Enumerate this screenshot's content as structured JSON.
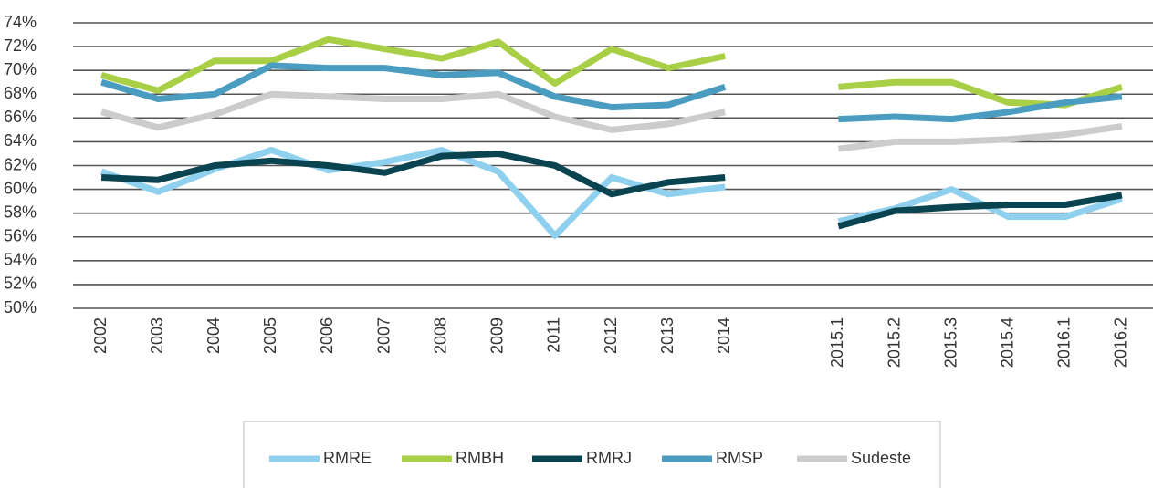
{
  "chart_data": {
    "type": "line",
    "categories": [
      "2002",
      "2003",
      "2004",
      "2005",
      "2006",
      "2007",
      "2008",
      "2009",
      "2011",
      "2012",
      "2013",
      "2014",
      null,
      "2015.1",
      "2015.2",
      "2015.3",
      "2015.4",
      "2016.1",
      "2016.2"
    ],
    "series": [
      {
        "name": "RMRE",
        "color": "#8fd0ef",
        "values": [
          61.5,
          59.8,
          61.7,
          63.3,
          61.6,
          62.3,
          63.3,
          61.5,
          56.1,
          61.0,
          59.6,
          60.2,
          null,
          57.3,
          58.4,
          60.0,
          57.7,
          57.7,
          59.2
        ]
      },
      {
        "name": "RMBH",
        "color": "#a8cf45",
        "values": [
          69.6,
          68.3,
          70.8,
          70.8,
          72.6,
          71.8,
          71.0,
          72.4,
          68.9,
          71.8,
          70.2,
          71.2,
          null,
          68.6,
          69.0,
          69.0,
          67.3,
          67.1,
          68.6
        ]
      },
      {
        "name": "RMRJ",
        "color": "#0b4451",
        "values": [
          61.0,
          60.8,
          62.0,
          62.4,
          62.0,
          61.4,
          62.8,
          63.0,
          62.0,
          59.6,
          60.6,
          61.0,
          null,
          56.9,
          58.2,
          58.5,
          58.7,
          58.7,
          59.5
        ]
      },
      {
        "name": "RMSP",
        "color": "#4a9cc0",
        "values": [
          69.0,
          67.6,
          68.0,
          70.4,
          70.2,
          70.2,
          69.6,
          69.8,
          67.8,
          66.9,
          67.1,
          68.6,
          null,
          65.9,
          66.1,
          65.9,
          66.5,
          67.3,
          67.8
        ]
      },
      {
        "name": "Sudeste",
        "color": "#cccccc",
        "values": [
          66.5,
          65.2,
          66.3,
          68.0,
          67.8,
          67.6,
          67.6,
          68.0,
          66.1,
          65.0,
          65.5,
          66.5,
          null,
          63.4,
          64.0,
          64.0,
          64.2,
          64.6,
          65.3
        ]
      }
    ],
    "ylim": [
      50,
      74
    ],
    "yticks": [
      {
        "value": 50,
        "label": "50%"
      },
      {
        "value": 52,
        "label": "52%"
      },
      {
        "value": 54,
        "label": "54%"
      },
      {
        "value": 56,
        "label": "56%"
      },
      {
        "value": 58,
        "label": "58%"
      },
      {
        "value": 60,
        "label": "60%"
      },
      {
        "value": 62,
        "label": "62%"
      },
      {
        "value": 64,
        "label": "64%"
      },
      {
        "value": 66,
        "label": "66%"
      },
      {
        "value": 68,
        "label": "68%"
      },
      {
        "value": 70,
        "label": "70%"
      },
      {
        "value": 72,
        "label": "72%"
      },
      {
        "value": 74,
        "label": "74%"
      }
    ],
    "grid": true,
    "legend": "bottom"
  }
}
